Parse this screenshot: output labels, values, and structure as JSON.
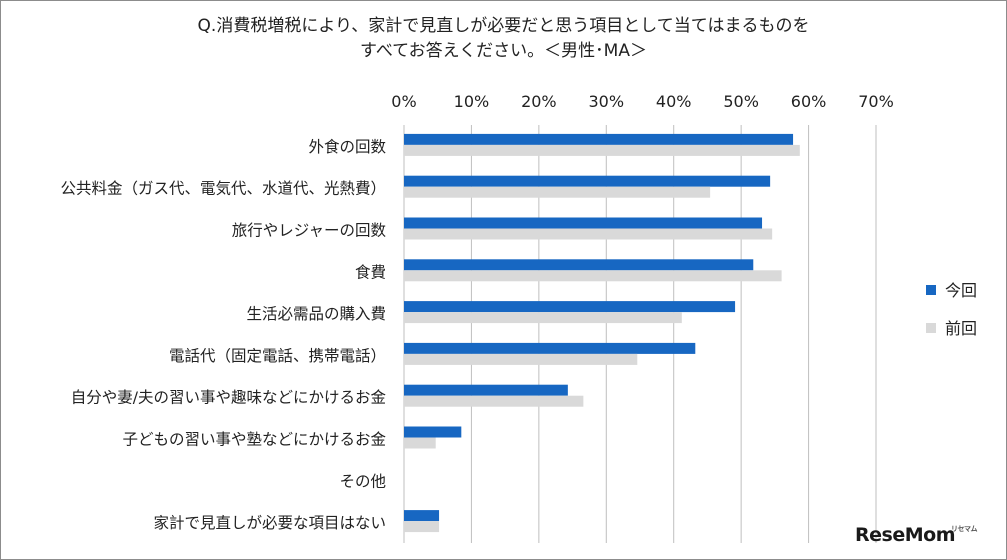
{
  "title_lines": [
    "Q.消費税増税により、家計で見直しが必要だと思う項目として当てはまるものを",
    "すべてお答えください。＜男性･MA＞"
  ],
  "watermark": {
    "text": "ReseMom",
    "mark": "リセマム"
  },
  "colors": {
    "current": "#1767c2",
    "previous": "#d9d9d9",
    "grid": "#bfbfbf"
  },
  "chart_data": {
    "type": "bar",
    "orientation": "horizontal",
    "title": "Q.消費税増税により、家計で見直しが必要だと思う項目として当てはまるものをすべてお答えください。＜男性･MA＞",
    "categories": [
      "外食の回数",
      "公共料金（ガス代、電気代、水道代、光熱費）",
      "旅行やレジャーの回数",
      "食費",
      "生活必需品の購入費",
      "電話代（固定電話、携帯電話）",
      "自分や妻/夫の習い事や趣味などにかけるお金",
      "子どもの習い事や塾などにかけるお金",
      "その他",
      "家計で見直しが必要な項目はない"
    ],
    "series": [
      {
        "name": "今回",
        "values": [
          57.7,
          54.3,
          53.1,
          51.8,
          49.1,
          43.2,
          24.3,
          8.5,
          0.0,
          5.2
        ]
      },
      {
        "name": "前回",
        "values": [
          58.7,
          45.4,
          54.6,
          56.0,
          41.2,
          34.6,
          26.6,
          4.7,
          0.0,
          5.2
        ]
      }
    ],
    "x_ticks": [
      "0%",
      "10%",
      "20%",
      "30%",
      "40%",
      "50%",
      "60%",
      "70%"
    ],
    "xlim": [
      0,
      70
    ],
    "axis_position": "top",
    "grid": true,
    "legend_position": "right"
  }
}
